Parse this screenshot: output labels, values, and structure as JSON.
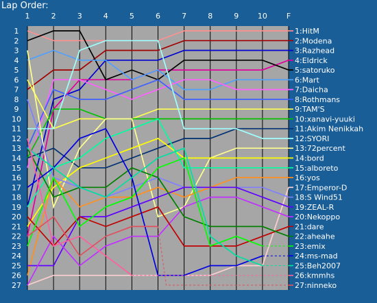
{
  "chart_data": {
    "type": "line",
    "title": "Lap Order:",
    "x_labels": [
      "1",
      "2",
      "3",
      "4",
      "5",
      "6",
      "7",
      "8",
      "9",
      "10",
      "F"
    ],
    "positions": [
      "1",
      "2",
      "3",
      "4",
      "5",
      "6",
      "7",
      "8",
      "9",
      "10",
      "11",
      "12",
      "13",
      "14",
      "15",
      "16",
      "17",
      "18",
      "19",
      "20",
      "21",
      "22",
      "23",
      "24",
      "25",
      "26",
      "27"
    ],
    "grid": true,
    "legend_placement": "right",
    "series": [
      {
        "name": "1:HitM",
        "color": "#ff9090",
        "pos": [
          1,
          2,
          2,
          2,
          2,
          2,
          1,
          1,
          1,
          1,
          1
        ]
      },
      {
        "name": "2:Modena",
        "color": "#a00000",
        "pos": [
          7,
          5,
          5,
          3,
          3,
          3,
          2,
          2,
          2,
          2,
          2
        ]
      },
      {
        "name": "3:Razhead",
        "color": "#0000d0",
        "pos": [
          19,
          8,
          7,
          4,
          4,
          4,
          3,
          3,
          3,
          3,
          3
        ]
      },
      {
        "name": "4:Eldrick",
        "color": "#e000a0",
        "pos": [
          22,
          9,
          6,
          6,
          6,
          5,
          5,
          5,
          5,
          5,
          4
        ]
      },
      {
        "name": "5:satoruko",
        "color": "#000000",
        "pos": [
          2,
          1,
          1,
          6,
          5,
          6,
          4,
          4,
          4,
          4,
          5
        ]
      },
      {
        "name": "6:Mart",
        "color": "#50a0ff",
        "pos": [
          4,
          3,
          4,
          4,
          6,
          5,
          7,
          7,
          6,
          6,
          6
        ]
      },
      {
        "name": "7:Daicha",
        "color": "#ff60ff",
        "pos": [
          15,
          6,
          6,
          7,
          8,
          7,
          6,
          6,
          7,
          7,
          7
        ]
      },
      {
        "name": "8:Rothmans",
        "color": "#4060ff",
        "pos": [
          13,
          7,
          8,
          8,
          7,
          6,
          8,
          8,
          8,
          8,
          8
        ]
      },
      {
        "name": "9:TAM'S",
        "color": "#ffff50",
        "pos": [
          6,
          11,
          10,
          10,
          10,
          9,
          9,
          9,
          9,
          9,
          9
        ]
      },
      {
        "name": "10:xanavi-yuuki",
        "color": "#00c000",
        "pos": [
          14,
          9,
          9,
          10,
          10,
          10,
          10,
          10,
          10,
          10,
          10
        ]
      },
      {
        "name": "11:Akim Nenikkah",
        "color": "#003070",
        "pos": [
          14,
          13,
          15,
          15,
          14,
          13,
          12,
          12,
          11,
          11,
          11
        ]
      },
      {
        "name": "12:SYORI",
        "color": "#a0ffff",
        "pos": [
          11,
          11,
          3,
          2,
          2,
          2,
          11,
          11,
          11,
          12,
          12
        ]
      },
      {
        "name": "13:72percent",
        "color": "#ffff90",
        "pos": [
          3,
          19,
          13,
          10,
          10,
          20,
          19,
          14,
          13,
          13,
          13
        ]
      },
      {
        "name": "14:bord",
        "color": "#ffff00",
        "pos": [
          21,
          17,
          15,
          14,
          13,
          12,
          14,
          14,
          14,
          14,
          14
        ]
      },
      {
        "name": "15:alboreto",
        "color": "#00ffa0",
        "pos": [
          19,
          15,
          14,
          12,
          11,
          10,
          15,
          15,
          15,
          15,
          15
        ]
      },
      {
        "name": "16:yos",
        "color": "#ff9020",
        "pos": [
          26,
          16,
          19,
          18,
          18,
          17,
          18,
          17,
          16,
          16,
          16
        ]
      },
      {
        "name": "17:Emperor-D",
        "color": "#ffd0d0",
        "pos": [
          27,
          26,
          26,
          26,
          26,
          26,
          26,
          26,
          25,
          25,
          17
        ]
      },
      {
        "name": "18:S Wind51",
        "color": "#8080ff",
        "pos": [
          8,
          16,
          17,
          18,
          17,
          16,
          17,
          17,
          17,
          17,
          18
        ]
      },
      {
        "name": "19:ZEAL-R",
        "color": "#6000ff",
        "pos": [
          25,
          25,
          20,
          20,
          19,
          18,
          17,
          17,
          17,
          18,
          19
        ]
      },
      {
        "name": "20:Nekoppo",
        "color": "#c030ff",
        "pos": [
          27,
          22,
          25,
          23,
          22,
          22,
          19,
          18,
          18,
          19,
          20
        ]
      },
      {
        "name": "21:dare",
        "color": "#c00000",
        "pos": [
          20,
          23,
          20,
          21,
          20,
          19,
          23,
          23,
          23,
          22,
          21
        ]
      },
      {
        "name": "22:aheahe",
        "color": "#008000",
        "pos": [
          13,
          18,
          17,
          17,
          15,
          16,
          20,
          21,
          21,
          21,
          22
        ]
      },
      {
        "name": "23:emix",
        "color": "#00ff00",
        "pos": [
          23,
          16,
          21,
          19,
          18,
          15,
          14,
          23,
          22,
          23,
          null
        ]
      },
      {
        "name": "24:ms-mad",
        "color": "#0000e0",
        "pos": [
          17,
          15,
          12,
          11,
          16,
          26,
          26,
          25,
          25,
          24,
          null
        ]
      },
      {
        "name": "25:Beh2007",
        "color": "#00e0a0",
        "pos": [
          13,
          15,
          17,
          18,
          16,
          14,
          13,
          22,
          24,
          25,
          null
        ]
      },
      {
        "name": "26:kmmhs",
        "color": "#ff60a0",
        "pos": [
          12,
          23,
          22,
          24,
          26,
          null,
          null,
          null,
          null,
          null,
          null
        ]
      },
      {
        "name": "27:ninneko",
        "color": "#e05060",
        "pos": [
          22,
          20,
          24,
          22,
          21,
          21,
          null,
          null,
          null,
          null,
          null
        ]
      }
    ]
  }
}
